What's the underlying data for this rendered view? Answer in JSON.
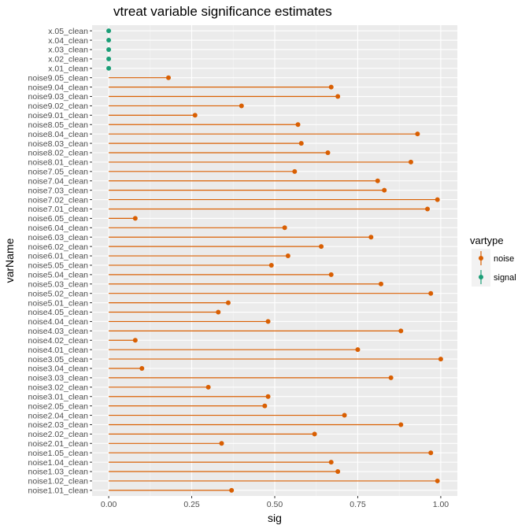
{
  "chart_data": {
    "type": "lollipop",
    "title": "vtreat variable significance estimates",
    "xlabel": "sig",
    "ylabel": "varName",
    "xlim": [
      0,
      1
    ],
    "xticks": [
      "0.00",
      "0.25",
      "0.50",
      "0.75",
      "1.00"
    ],
    "xtick_values": [
      0,
      0.25,
      0.5,
      0.75,
      1.0
    ],
    "grid": true,
    "legend": {
      "title": "vartype",
      "position": "right",
      "entries": [
        {
          "name": "noise",
          "color": "#d95f02"
        },
        {
          "name": "signal",
          "color": "#1b9e77"
        }
      ]
    },
    "categories": [
      "x.05_clean",
      "x.04_clean",
      "x.03_clean",
      "x.02_clean",
      "x.01_clean",
      "noise9.05_clean",
      "noise9.04_clean",
      "noise9.03_clean",
      "noise9.02_clean",
      "noise9.01_clean",
      "noise8.05_clean",
      "noise8.04_clean",
      "noise8.03_clean",
      "noise8.02_clean",
      "noise8.01_clean",
      "noise7.05_clean",
      "noise7.04_clean",
      "noise7.03_clean",
      "noise7.02_clean",
      "noise7.01_clean",
      "noise6.05_clean",
      "noise6.04_clean",
      "noise6.03_clean",
      "noise6.02_clean",
      "noise6.01_clean",
      "noise5.05_clean",
      "noise5.04_clean",
      "noise5.03_clean",
      "noise5.02_clean",
      "noise5.01_clean",
      "noise4.05_clean",
      "noise4.04_clean",
      "noise4.03_clean",
      "noise4.02_clean",
      "noise4.01_clean",
      "noise3.05_clean",
      "noise3.04_clean",
      "noise3.03_clean",
      "noise3.02_clean",
      "noise3.01_clean",
      "noise2.05_clean",
      "noise2.04_clean",
      "noise2.03_clean",
      "noise2.02_clean",
      "noise2.01_clean",
      "noise1.05_clean",
      "noise1.04_clean",
      "noise1.03_clean",
      "noise1.02_clean",
      "noise1.01_clean"
    ],
    "values": [
      0,
      0,
      0,
      0,
      0,
      0.18,
      0.67,
      0.69,
      0.4,
      0.26,
      0.57,
      0.93,
      0.58,
      0.66,
      0.91,
      0.56,
      0.81,
      0.83,
      0.99,
      0.96,
      0.08,
      0.53,
      0.79,
      0.64,
      0.54,
      0.49,
      0.67,
      0.82,
      0.97,
      0.36,
      0.33,
      0.48,
      0.88,
      0.08,
      0.75,
      1.0,
      0.1,
      0.85,
      0.3,
      0.48,
      0.47,
      0.71,
      0.88,
      0.62,
      0.34,
      0.97,
      0.67,
      0.69,
      0.99,
      0.37
    ],
    "vartype": [
      "signal",
      "signal",
      "signal",
      "signal",
      "signal",
      "noise",
      "noise",
      "noise",
      "noise",
      "noise",
      "noise",
      "noise",
      "noise",
      "noise",
      "noise",
      "noise",
      "noise",
      "noise",
      "noise",
      "noise",
      "noise",
      "noise",
      "noise",
      "noise",
      "noise",
      "noise",
      "noise",
      "noise",
      "noise",
      "noise",
      "noise",
      "noise",
      "noise",
      "noise",
      "noise",
      "noise",
      "noise",
      "noise",
      "noise",
      "noise",
      "noise",
      "noise",
      "noise",
      "noise",
      "noise",
      "noise",
      "noise",
      "noise",
      "noise",
      "noise"
    ]
  }
}
